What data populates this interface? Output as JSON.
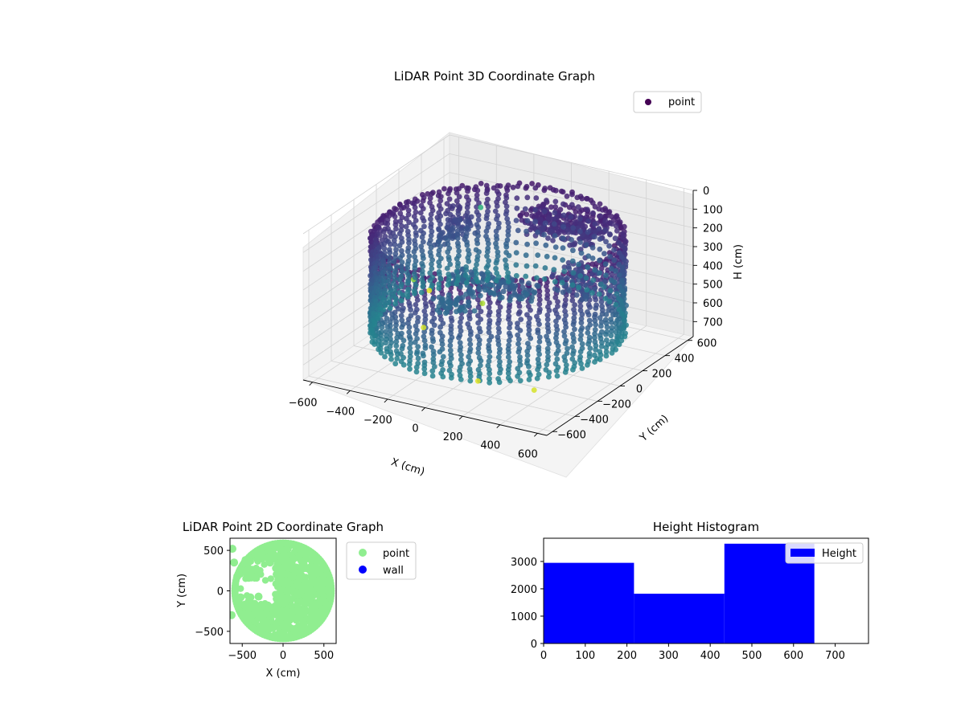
{
  "colors": {
    "point_2d": "#90ee90",
    "wall_2d": "#0000ff",
    "histogram_bar": "#0000ff",
    "legend_point_3d": "#440154",
    "colormap": "viridis"
  },
  "chart_data": [
    {
      "type": "scatter",
      "title": "LiDAR Point 3D Coordinate Graph",
      "xlabel": "X (cm)",
      "ylabel": "Y (cm)",
      "zlabel": "H (cm)",
      "xlim": [
        -650,
        650
      ],
      "ylim": [
        -650,
        650
      ],
      "zlim": [
        0,
        780
      ],
      "z_inverted": true,
      "x_ticks": [
        "−600",
        "−400",
        "−200",
        "0",
        "200",
        "400",
        "600"
      ],
      "y_ticks": [
        "−600",
        "−400",
        "−200",
        "0",
        "200",
        "400",
        "600"
      ],
      "z_ticks": [
        "0",
        "100",
        "200",
        "300",
        "400",
        "500",
        "600",
        "700"
      ],
      "legend": [
        "point"
      ],
      "legend_position": "upper right",
      "structure": {
        "ring_radius": 580,
        "wall_height_min": 130,
        "wall_height_max": 650
      },
      "series": [
        {
          "name": "point",
          "outliers": [
            {
              "x": -620,
              "y": 420,
              "h": 730
            },
            {
              "x": -560,
              "y": 180,
              "h": 560
            },
            {
              "x": -210,
              "y": 210,
              "h": 620
            },
            {
              "x": 120,
              "y": -380,
              "h": 720
            },
            {
              "x": 420,
              "y": -380,
              "h": 700
            },
            {
              "x": -380,
              "y": -30,
              "h": 690
            },
            {
              "x": -430,
              "y": 560,
              "h": 300
            }
          ]
        }
      ]
    },
    {
      "type": "scatter",
      "title": "LiDAR Point 2D Coordinate Graph",
      "xlabel": "X (cm)",
      "ylabel": "Y (cm)",
      "xlim": [
        -650,
        650
      ],
      "ylim": [
        -650,
        650
      ],
      "x_ticks": [
        -500,
        0,
        500
      ],
      "y_ticks": [
        -500,
        0,
        500
      ],
      "legend": [
        "point",
        "wall"
      ],
      "legend_position": "outside upper right"
    },
    {
      "type": "bar",
      "title": "Height Histogram",
      "xlim": [
        0,
        780
      ],
      "ylim": [
        0,
        3850
      ],
      "x_ticks": [
        0,
        100,
        200,
        300,
        400,
        500,
        600,
        700
      ],
      "y_ticks": [
        0,
        1000,
        2000,
        3000
      ],
      "bins": [
        {
          "start": 0,
          "end": 217,
          "count": 2950
        },
        {
          "start": 217,
          "end": 434,
          "count": 1820
        },
        {
          "start": 434,
          "end": 650,
          "count": 3650
        },
        {
          "start": 650,
          "end": 780,
          "count": 15
        }
      ],
      "legend": [
        "Height"
      ],
      "legend_position": "upper right"
    }
  ]
}
